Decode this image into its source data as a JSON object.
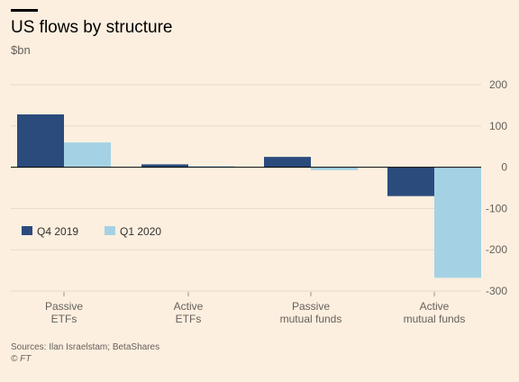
{
  "title": "US flows by structure",
  "subtitle": "$bn",
  "source": "Sources: Ilan Israelstam; BetaShares",
  "copyright": "© FT",
  "colors": {
    "background": "#fcefdf",
    "grid": "#e6d9ce",
    "zero_line": "#000000",
    "series_q4_2019": "#2b4b7d",
    "series_q1_2020": "#a4d2e4"
  },
  "chart_data": {
    "type": "bar",
    "title": "US flows by structure",
    "ylabel": "$bn",
    "ylim": [
      -300,
      200
    ],
    "yticks": [
      200,
      100,
      0,
      -100,
      -200,
      -300
    ],
    "grid": true,
    "legend_position": "left, middle",
    "categories": [
      [
        "Passive",
        "ETFs"
      ],
      [
        "Active",
        "ETFs"
      ],
      [
        "Passive",
        "mutual funds"
      ],
      [
        "Active",
        "mutual funds"
      ]
    ],
    "series": [
      {
        "name": "Q4 2019",
        "color": "#2b4b7d",
        "values": [
          128,
          7,
          25,
          -70
        ]
      },
      {
        "name": "Q1 2020",
        "color": "#a4d2e4",
        "values": [
          60,
          3,
          -7,
          -268
        ]
      }
    ]
  }
}
